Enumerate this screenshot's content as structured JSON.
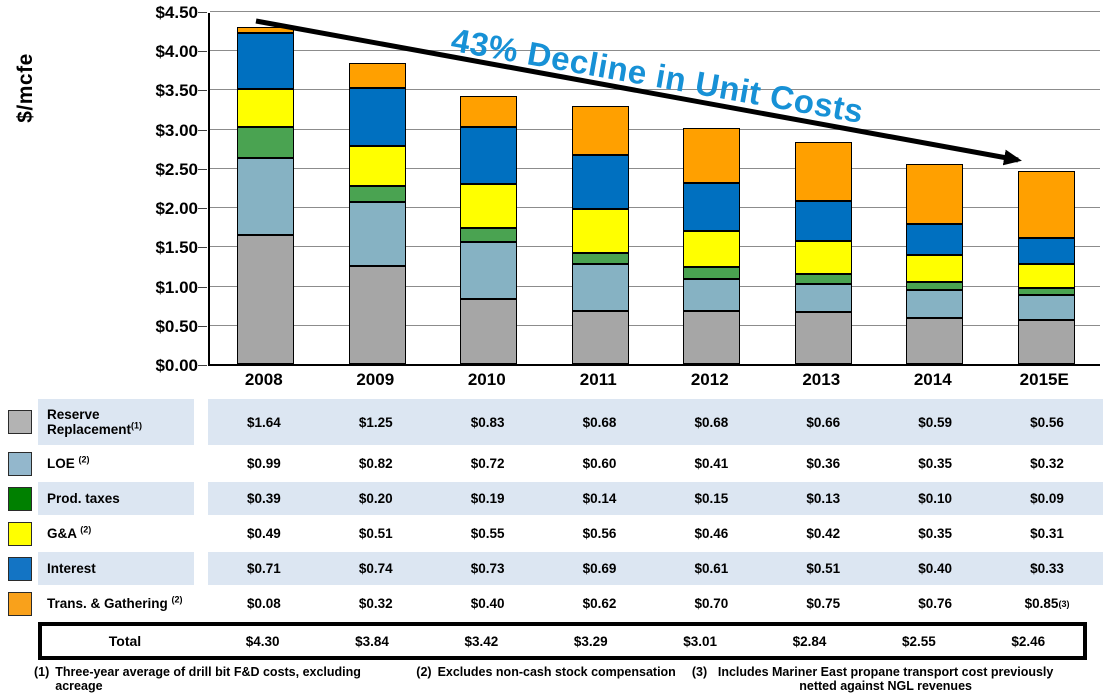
{
  "chart_data": {
    "type": "bar",
    "stacked": true,
    "title": "",
    "xlabel": "",
    "ylabel": "$/mcfe",
    "ylim": [
      0,
      4.5
    ],
    "ytick_step": 0.5,
    "ytick_labels": [
      "$0.00",
      "$0.50",
      "$1.00",
      "$1.50",
      "$2.00",
      "$2.50",
      "$3.00",
      "$3.50",
      "$4.00",
      "$4.50"
    ],
    "grid": true,
    "legend_position": "table-left",
    "categories": [
      "2008",
      "2009",
      "2010",
      "2011",
      "2012",
      "2013",
      "2014",
      "2015E"
    ],
    "series": [
      {
        "name": "Reserve Replacement",
        "sup": "(1)",
        "chart_color": "#a6a6a6",
        "legend_color": "#b3b3b3",
        "values": [
          1.64,
          1.25,
          0.83,
          0.68,
          0.68,
          0.66,
          0.59,
          0.56
        ],
        "display": [
          "$1.64",
          "$1.25",
          "$0.83",
          "$0.68",
          "$0.68",
          "$0.66",
          "$0.59",
          "$0.56"
        ]
      },
      {
        "name": "LOE ",
        "sup": "(2)",
        "chart_color": "#86b2c3",
        "legend_color": "#93b7cc",
        "values": [
          0.99,
          0.82,
          0.72,
          0.6,
          0.41,
          0.36,
          0.35,
          0.32
        ],
        "display": [
          "$0.99",
          "$0.82",
          "$0.72",
          "$0.60",
          "$0.41",
          "$0.36",
          "$0.35",
          "$0.32"
        ]
      },
      {
        "name": "Prod. taxes",
        "sup": "",
        "chart_color": "#4aa351",
        "legend_color": "#008000",
        "values": [
          0.39,
          0.2,
          0.19,
          0.14,
          0.15,
          0.13,
          0.1,
          0.09
        ],
        "display": [
          "$0.39",
          "$0.20",
          "$0.19",
          "$0.14",
          "$0.15",
          "$0.13",
          "$0.10",
          "$0.09"
        ]
      },
      {
        "name": "G&A ",
        "sup": "(2)",
        "chart_color": "#ffff00",
        "legend_color": "#ffff00",
        "values": [
          0.49,
          0.51,
          0.55,
          0.56,
          0.46,
          0.42,
          0.35,
          0.31
        ],
        "display": [
          "$0.49",
          "$0.51",
          "$0.55",
          "$0.56",
          "$0.46",
          "$0.42",
          "$0.35",
          "$0.31"
        ]
      },
      {
        "name": "Interest",
        "sup": "",
        "chart_color": "#0070c0",
        "legend_color": "#1374c4",
        "values": [
          0.71,
          0.74,
          0.73,
          0.69,
          0.61,
          0.51,
          0.4,
          0.33
        ],
        "display": [
          "$0.71",
          "$0.74",
          "$0.73",
          "$0.69",
          "$0.61",
          "$0.51",
          "$0.40",
          "$0.33"
        ]
      },
      {
        "name": "Trans. & Gathering ",
        "sup": "(2)",
        "chart_color": "#ffa000",
        "legend_color": "#f9a11b",
        "values": [
          0.08,
          0.32,
          0.4,
          0.62,
          0.7,
          0.75,
          0.76,
          0.85
        ],
        "display": [
          "$0.08",
          "$0.32",
          "$0.40",
          "$0.62",
          "$0.70",
          "$0.75",
          "$0.76",
          "$0.85^(3)"
        ]
      }
    ],
    "totals": {
      "label": "Total",
      "values": [
        4.3,
        3.84,
        3.42,
        3.29,
        3.01,
        2.84,
        2.55,
        2.46
      ],
      "display": [
        "$4.30",
        "$3.84",
        "$3.42",
        "$3.29",
        "$3.01",
        "$2.84",
        "$2.55",
        "$2.46"
      ]
    },
    "annotation": {
      "text": "43% Decline in Unit Costs",
      "color": "#1791d6"
    }
  },
  "footnotes": [
    {
      "marker": "(1)",
      "text": "Three-year average of drill bit F&D costs, excluding acreage"
    },
    {
      "marker": "(2)",
      "text": "Excludes non-cash stock compensation"
    },
    {
      "marker": "(3)",
      "text": "Includes Mariner East propane transport cost previously netted against NGL revenues"
    }
  ]
}
